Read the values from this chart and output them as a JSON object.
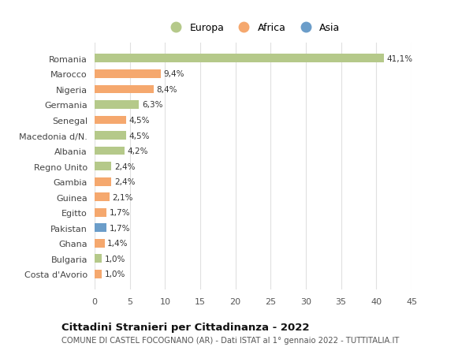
{
  "categories": [
    "Costa d'Avorio",
    "Bulgaria",
    "Ghana",
    "Pakistan",
    "Egitto",
    "Guinea",
    "Gambia",
    "Regno Unito",
    "Albania",
    "Macedonia d/N.",
    "Senegal",
    "Germania",
    "Nigeria",
    "Marocco",
    "Romania"
  ],
  "values": [
    1.0,
    1.0,
    1.4,
    1.7,
    1.7,
    2.1,
    2.4,
    2.4,
    4.2,
    4.5,
    4.5,
    6.3,
    8.4,
    9.4,
    41.1
  ],
  "labels": [
    "1,0%",
    "1,0%",
    "1,4%",
    "1,7%",
    "1,7%",
    "2,1%",
    "2,4%",
    "2,4%",
    "4,2%",
    "4,5%",
    "4,5%",
    "6,3%",
    "8,4%",
    "9,4%",
    "41,1%"
  ],
  "colors": [
    "#f5a86e",
    "#b5c98a",
    "#f5a86e",
    "#6b9dc9",
    "#f5a86e",
    "#f5a86e",
    "#f5a86e",
    "#b5c98a",
    "#b5c98a",
    "#b5c98a",
    "#f5a86e",
    "#b5c98a",
    "#f5a86e",
    "#f5a86e",
    "#b5c98a"
  ],
  "legend_labels": [
    "Europa",
    "Africa",
    "Asia"
  ],
  "legend_colors": [
    "#b5c98a",
    "#f5a86e",
    "#6b9dc9"
  ],
  "title": "Cittadini Stranieri per Cittadinanza - 2022",
  "subtitle": "COMUNE DI CASTEL FOCOGNANO (AR) - Dati ISTAT al 1° gennaio 2022 - TUTTITALIA.IT",
  "xlim": [
    0,
    45
  ],
  "xticks": [
    0,
    5,
    10,
    15,
    20,
    25,
    30,
    35,
    40,
    45
  ],
  "background_color": "#ffffff",
  "bar_height": 0.55,
  "grid_color": "#e0e0e0"
}
